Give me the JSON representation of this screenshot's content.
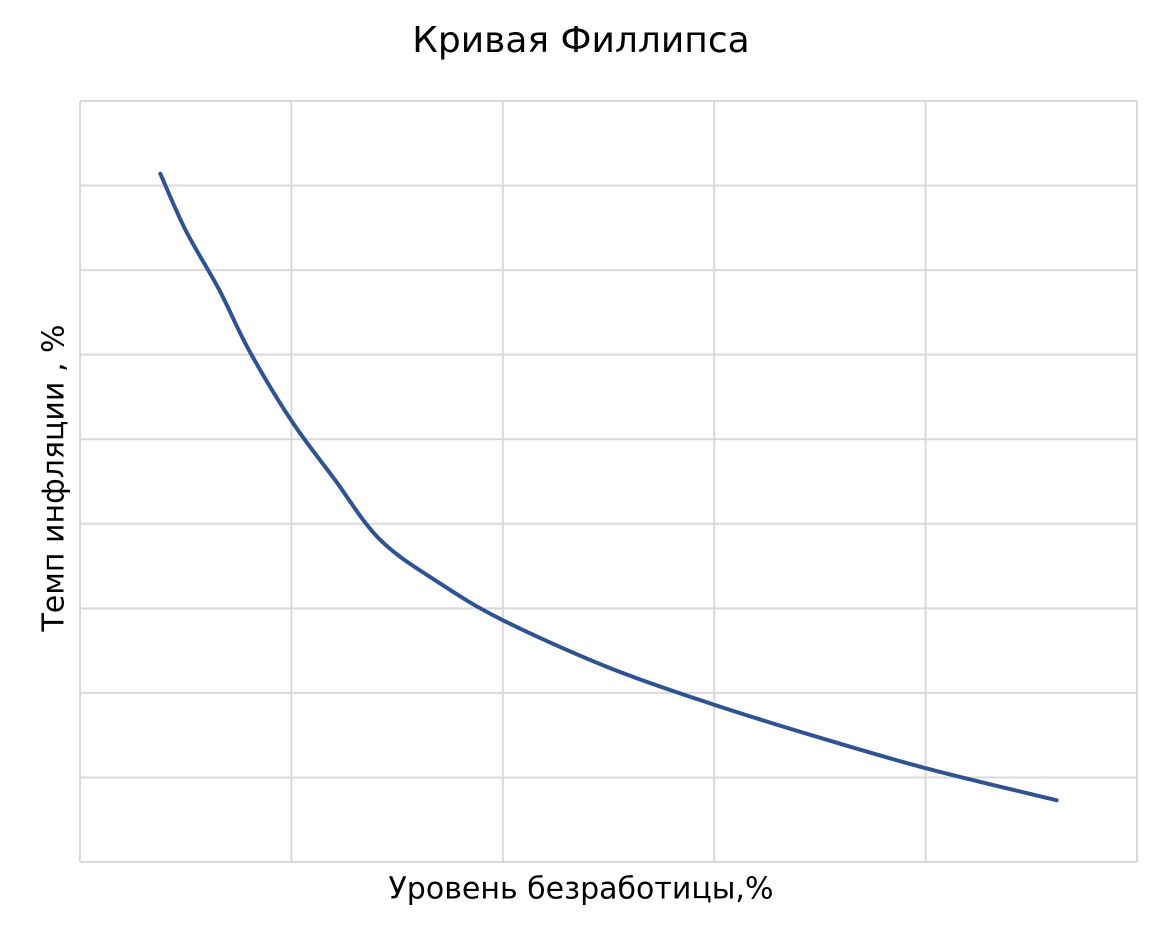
{
  "chart_data": {
    "type": "line",
    "title": "Кривая Филлипса",
    "x_label": "Уровень безработицы,%",
    "y_label": "Темп инфляции , %",
    "x": [
      0.38,
      0.5,
      0.66,
      0.8,
      1.0,
      1.2,
      1.42,
      1.7,
      2.0,
      2.5,
      3.0,
      3.5,
      4.0,
      4.62
    ],
    "series": [
      {
        "color": "#2f5391",
        "values": [
          8.14,
          7.47,
          6.76,
          6.05,
          5.22,
          4.54,
          3.81,
          3.3,
          2.86,
          2.3,
          1.86,
          1.47,
          1.11,
          0.73
        ]
      }
    ],
    "xlim": [
      0,
      5
    ],
    "ylim": [
      0,
      9
    ],
    "xticks": [
      0,
      1,
      2,
      3,
      4,
      5
    ],
    "yticks": [
      0,
      1,
      2,
      3,
      4,
      5,
      6,
      7,
      8,
      9
    ],
    "grid": true,
    "tick_labels": false
  }
}
